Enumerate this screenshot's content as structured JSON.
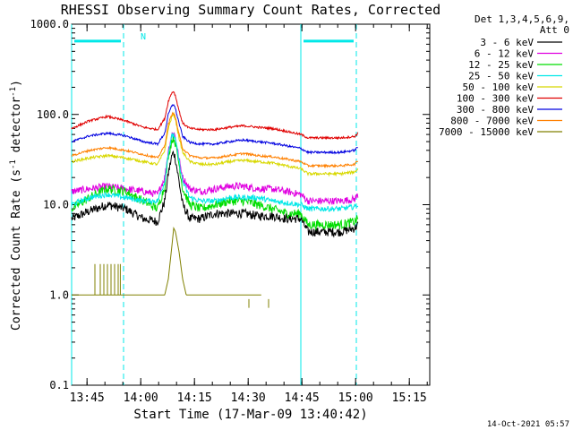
{
  "chart_data": {
    "type": "line",
    "title": "RHESSI Observing Summary Count Rates, Corrected",
    "xlabel": "Start Time (17-Mar-09 13:40:42)",
    "ylabel_main": "Corrected Count Rate (s",
    "ylabel_sup1": "-1",
    "ylabel_mid": " detector",
    "ylabel_sup2": "-1",
    "ylabel_end": ")",
    "yscale": "log",
    "ylim": [
      0.1,
      1000
    ],
    "y_ticks": [
      {
        "value": 1000,
        "label": "1000.0"
      },
      {
        "value": 100,
        "label": "100.0"
      },
      {
        "value": 10,
        "label": "10.0"
      },
      {
        "value": 1,
        "label": "1.0"
      },
      {
        "value": 0.1,
        "label": "0.1"
      }
    ],
    "xlim_min": [
      0,
      100
    ],
    "x_ticks": [
      {
        "value": 4.3,
        "label": "13:45"
      },
      {
        "value": 19.3,
        "label": "14:00"
      },
      {
        "value": 34.3,
        "label": "14:15"
      },
      {
        "value": 49.3,
        "label": "14:30"
      },
      {
        "value": 64.3,
        "label": "14:45"
      },
      {
        "value": 79.3,
        "label": "15:00"
      },
      {
        "value": 94.3,
        "label": "15:15"
      }
    ],
    "legend_header": [
      "Det 1,3,4,5,6,9,",
      "Att 0"
    ],
    "legend_placement": "right",
    "footer_date": "14-Oct-2021 05:57",
    "night_flag_label": "N",
    "night_intervals": [
      [
        0,
        14.5
      ],
      [
        64.0,
        79.5
      ]
    ],
    "night_bar_value": 650,
    "cyan_lines_solid": [
      0.0,
      64.0
    ],
    "cyan_lines_dashed": [
      14.5,
      79.5
    ],
    "flare_peak_time": 28.5,
    "series": [
      {
        "name": "3 - 6 keV",
        "color": "#000000",
        "noise": 0.05,
        "x": [
          0,
          5,
          10,
          15,
          20,
          24,
          26,
          27,
          28,
          28.5,
          29,
          30,
          31,
          33,
          36,
          40,
          44,
          48,
          52,
          56,
          60,
          64,
          66,
          70,
          75,
          79,
          80
        ],
        "y": [
          7,
          8.5,
          10,
          9,
          7,
          6.5,
          11,
          22,
          35,
          38,
          32,
          18,
          10,
          7,
          7,
          8,
          8,
          8,
          7.5,
          7.5,
          7,
          7,
          5,
          5,
          5,
          5.5,
          6
        ]
      },
      {
        "name": "6 - 12 keV",
        "color": "#e000e0",
        "noise": 0.04,
        "x": [
          0,
          5,
          10,
          15,
          20,
          24,
          26,
          27,
          28,
          28.5,
          29,
          30,
          31,
          33,
          36,
          40,
          44,
          48,
          52,
          56,
          60,
          64,
          66,
          70,
          75,
          79,
          80
        ],
        "y": [
          14,
          15,
          16,
          15,
          14,
          13,
          20,
          40,
          60,
          64,
          55,
          32,
          20,
          15,
          14,
          15,
          16,
          16,
          15,
          15,
          14,
          13,
          11,
          11,
          11,
          11.5,
          13
        ]
      },
      {
        "name": "12 - 25 keV",
        "color": "#00dd00",
        "noise": 0.05,
        "x": [
          0,
          5,
          10,
          15,
          20,
          24,
          26,
          27,
          28,
          28.5,
          29,
          30,
          31,
          33,
          36,
          40,
          44,
          48,
          52,
          56,
          60,
          64,
          66,
          70,
          75,
          79,
          80
        ],
        "y": [
          9,
          12,
          15,
          14,
          11,
          9,
          16,
          35,
          52,
          55,
          48,
          28,
          15,
          10,
          9,
          10,
          11,
          11,
          10,
          9,
          8,
          8,
          6,
          6,
          6,
          6.5,
          7
        ]
      },
      {
        "name": "25 - 50 keV",
        "color": "#00e8e8",
        "noise": 0.03,
        "x": [
          0,
          5,
          10,
          15,
          20,
          24,
          26,
          27,
          28,
          28.5,
          29,
          30,
          31,
          33,
          36,
          40,
          44,
          48,
          52,
          56,
          60,
          64,
          66,
          70,
          75,
          79,
          80
        ],
        "y": [
          10,
          12,
          13,
          12,
          11,
          11,
          18,
          38,
          58,
          60,
          52,
          30,
          18,
          12,
          11,
          11,
          12,
          12,
          12,
          11,
          10.5,
          10,
          9,
          9,
          9,
          9.5,
          10
        ]
      },
      {
        "name": "50 - 100 keV",
        "color": "#d8d800",
        "noise": 0.015,
        "x": [
          0,
          5,
          10,
          15,
          20,
          24,
          26,
          27,
          28,
          28.5,
          29,
          30,
          31,
          33,
          36,
          40,
          44,
          48,
          52,
          56,
          60,
          64,
          66,
          70,
          75,
          79,
          80
        ],
        "y": [
          30,
          33,
          35,
          33,
          30,
          28,
          40,
          70,
          95,
          100,
          88,
          55,
          38,
          30,
          28,
          28,
          30,
          31,
          30,
          29,
          27,
          25,
          22,
          22,
          22,
          23,
          25
        ]
      },
      {
        "name": "100 - 300 keV",
        "color": "#e00000",
        "noise": 0.012,
        "x": [
          0,
          5,
          10,
          15,
          20,
          24,
          26,
          27,
          28,
          28.5,
          29,
          30,
          31,
          33,
          36,
          40,
          44,
          48,
          52,
          56,
          60,
          64,
          66,
          70,
          75,
          79,
          80
        ],
        "y": [
          70,
          85,
          95,
          85,
          72,
          68,
          90,
          140,
          175,
          180,
          160,
          110,
          80,
          70,
          68,
          68,
          72,
          75,
          72,
          70,
          65,
          60,
          55,
          55,
          55,
          57,
          62
        ]
      },
      {
        "name": "300 - 800 keV",
        "color": "#0000e0",
        "noise": 0.012,
        "x": [
          0,
          5,
          10,
          15,
          20,
          24,
          26,
          27,
          28,
          28.5,
          29,
          30,
          31,
          33,
          36,
          40,
          44,
          48,
          52,
          56,
          60,
          64,
          66,
          70,
          75,
          79,
          80
        ],
        "y": [
          50,
          58,
          62,
          58,
          50,
          47,
          62,
          100,
          125,
          130,
          115,
          80,
          57,
          49,
          47,
          47,
          50,
          52,
          50,
          48,
          45,
          42,
          38,
          38,
          38,
          40,
          44
        ]
      },
      {
        "name": "800 - 7000 keV",
        "color": "#ff8000",
        "noise": 0.012,
        "x": [
          0,
          5,
          10,
          15,
          20,
          24,
          26,
          27,
          28,
          28.5,
          29,
          30,
          31,
          33,
          36,
          40,
          44,
          48,
          52,
          56,
          60,
          64,
          66,
          70,
          75,
          79,
          80
        ],
        "y": [
          35,
          40,
          43,
          40,
          36,
          33,
          45,
          78,
          100,
          105,
          92,
          60,
          42,
          35,
          33,
          33,
          35,
          37,
          35,
          34,
          32,
          30,
          27,
          27,
          27,
          28,
          31
        ]
      },
      {
        "name": "7000 - 15000 keV",
        "color": "#808000",
        "noise": 0.0,
        "x": [
          0,
          14.5,
          14.5,
          26,
          27,
          28,
          28.5,
          29,
          30,
          31,
          32,
          44,
          52,
          53
        ],
        "y": [
          1,
          1,
          1,
          1,
          1.5,
          3.5,
          5.5,
          5,
          3,
          1.5,
          1,
          1,
          1,
          1
        ],
        "x_range": [
          0,
          53
        ]
      }
    ]
  }
}
